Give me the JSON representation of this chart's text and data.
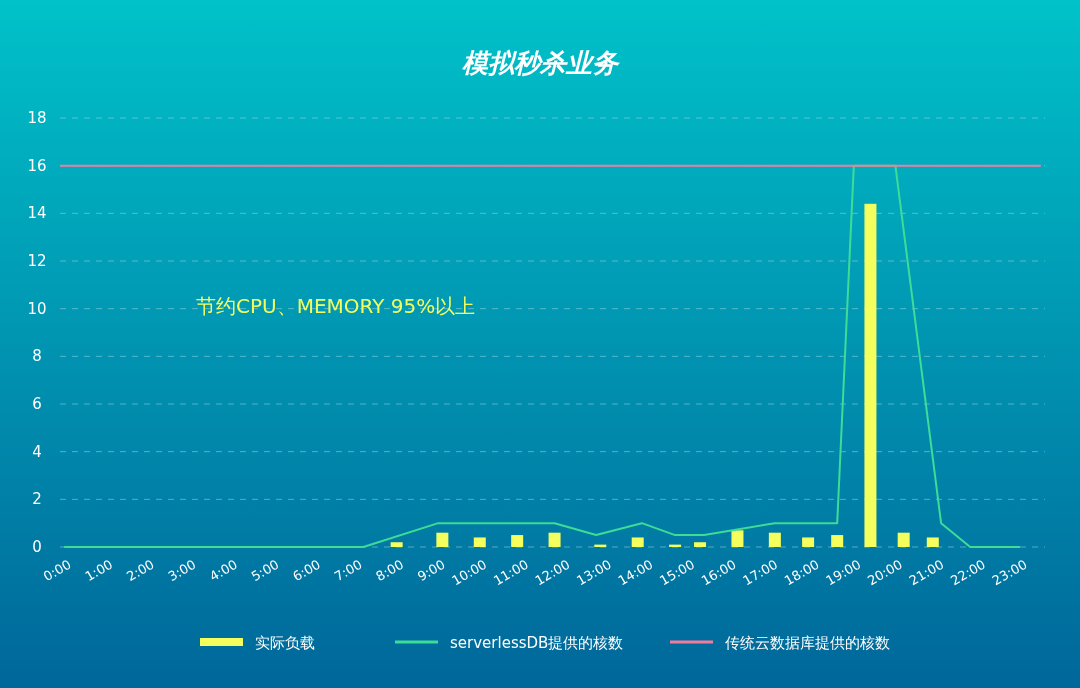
{
  "chart_data": {
    "type": "line",
    "title": "模拟秒杀业务",
    "annotations": [
      "节约CPU、MEMORY 95%以上"
    ],
    "xlim": [
      -0.1,
      23.6
    ],
    "ylim": [
      0,
      18
    ],
    "xticks": [
      {
        "value": 0,
        "label": "0:00"
      },
      {
        "value": 1,
        "label": "1:00"
      },
      {
        "value": 2,
        "label": "2:00"
      },
      {
        "value": 3,
        "label": "3:00"
      },
      {
        "value": 4,
        "label": "4:00"
      },
      {
        "value": 5,
        "label": "5:00"
      },
      {
        "value": 6,
        "label": "6:00"
      },
      {
        "value": 7,
        "label": "7:00"
      },
      {
        "value": 8,
        "label": "8:00"
      },
      {
        "value": 9,
        "label": "9:00"
      },
      {
        "value": 10,
        "label": "10:00"
      },
      {
        "value": 11,
        "label": "11:00"
      },
      {
        "value": 12,
        "label": "12:00"
      },
      {
        "value": 13,
        "label": "13:00"
      },
      {
        "value": 14,
        "label": "14:00"
      },
      {
        "value": 15,
        "label": "15:00"
      },
      {
        "value": 16,
        "label": "16:00"
      },
      {
        "value": 17,
        "label": "17:00"
      },
      {
        "value": 18,
        "label": "18:00"
      },
      {
        "value": 19,
        "label": "19:00"
      },
      {
        "value": 20,
        "label": "20:00"
      },
      {
        "value": 21,
        "label": "21:00"
      },
      {
        "value": 22,
        "label": "22:00"
      },
      {
        "value": 23,
        "label": "23:00"
      }
    ],
    "yticks": [
      0,
      2,
      4,
      6,
      8,
      10,
      12,
      14,
      16,
      18
    ],
    "grid": "y",
    "legend": "bottom",
    "marker": "none",
    "series": [
      {
        "name": "实际负载",
        "type": "bar",
        "color": "#f4ff5e",
        "x": [
          8.0,
          9.1,
          10.0,
          10.9,
          11.8,
          12.9,
          13.8,
          14.7,
          15.3,
          16.2,
          17.1,
          17.9,
          18.6,
          19.4,
          20.2,
          20.9
        ],
        "values": [
          0.2,
          0.6,
          0.4,
          0.5,
          0.6,
          0.1,
          0.4,
          0.1,
          0.2,
          0.7,
          0.6,
          0.4,
          0.5,
          14.4,
          0.6,
          0.4
        ]
      },
      {
        "name": "serverlessDB提供的核数",
        "color": "#3ddc97",
        "x": [
          0,
          7.2,
          9.0,
          11.8,
          12.8,
          13.9,
          14.7,
          15.4,
          17.1,
          18.6,
          19.0,
          20.0,
          21.1,
          21.8,
          23.0
        ],
        "values": [
          0,
          0,
          1,
          1,
          0.5,
          1,
          0.5,
          0.5,
          1,
          1,
          16,
          16,
          1,
          0,
          0
        ]
      },
      {
        "name": "传统云数据库提供的核数",
        "type": "line",
        "color": "#f07ca0",
        "x": [
          -0.1,
          23.5
        ],
        "values": [
          16,
          16
        ]
      }
    ]
  }
}
